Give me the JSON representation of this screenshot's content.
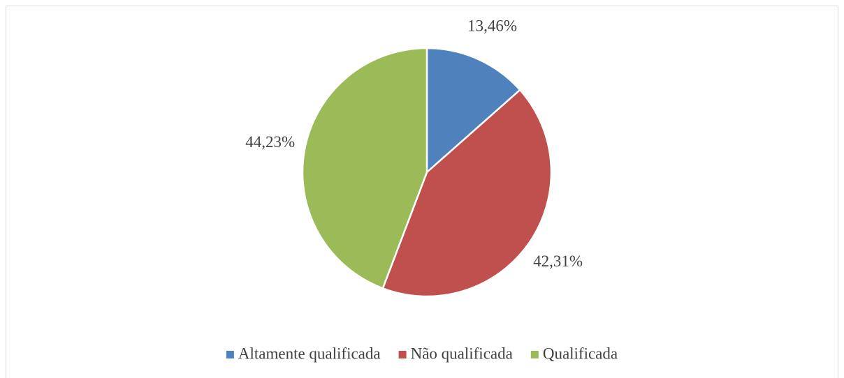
{
  "chart_data": {
    "type": "pie",
    "categories": [
      "Altamente qualificada",
      "Não qualificada",
      "Qualificada"
    ],
    "values": [
      13.46,
      42.31,
      44.23
    ],
    "value_labels": [
      "13,46%",
      "42,31%",
      "44,23%"
    ],
    "colors": [
      "#4f81bd",
      "#c0504d",
      "#9bbb59"
    ],
    "legend": "bottom"
  }
}
